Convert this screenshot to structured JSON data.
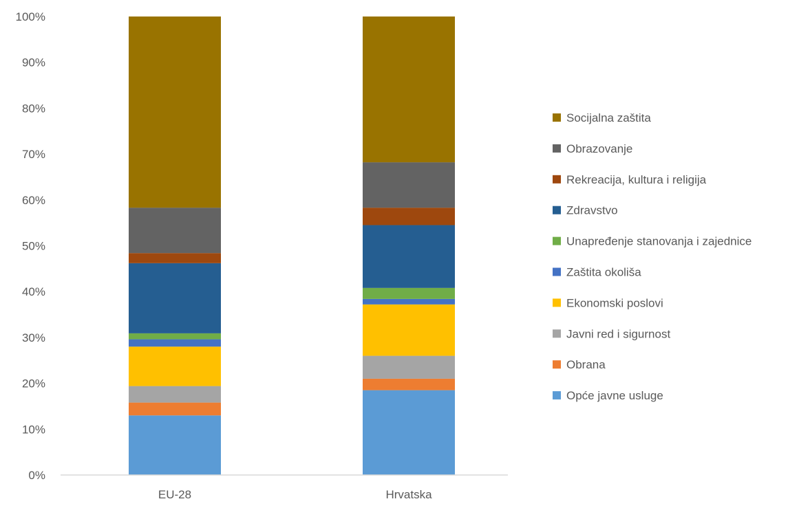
{
  "chart_data": {
    "type": "bar",
    "stacked": true,
    "categories": [
      "EU-28",
      "Hrvatska"
    ],
    "series": [
      {
        "name": "Opće javne usluge",
        "color": "#5b9bd5",
        "values": [
          13.0,
          18.5
        ]
      },
      {
        "name": "Obrana",
        "color": "#ed7d31",
        "values": [
          2.8,
          2.5
        ]
      },
      {
        "name": "Javni red i sigurnost",
        "color": "#a5a5a5",
        "values": [
          3.6,
          5.0
        ]
      },
      {
        "name": "Ekonomski poslovi",
        "color": "#ffc000",
        "values": [
          8.6,
          11.2
        ]
      },
      {
        "name": "Zaštita okoliša",
        "color": "#4472c4",
        "values": [
          1.6,
          1.2
        ]
      },
      {
        "name": "Unapređenje stanovanja i zajednice",
        "color": "#70ad47",
        "values": [
          1.3,
          2.4
        ]
      },
      {
        "name": "Zdravstvo",
        "color": "#255e91",
        "values": [
          15.3,
          13.7
        ]
      },
      {
        "name": "Rekreacija, kultura i religija",
        "color": "#9e480e",
        "values": [
          2.2,
          3.8
        ]
      },
      {
        "name": "Obrazovanje",
        "color": "#636363",
        "values": [
          9.9,
          9.9
        ]
      },
      {
        "name": "Socijalna zaštita",
        "color": "#997300",
        "values": [
          41.7,
          31.8
        ]
      }
    ],
    "yticks": [
      "0%",
      "10%",
      "20%",
      "30%",
      "40%",
      "50%",
      "60%",
      "70%",
      "80%",
      "90%",
      "100%"
    ],
    "ylim": [
      0,
      100
    ],
    "grid": false,
    "legend": "right"
  }
}
